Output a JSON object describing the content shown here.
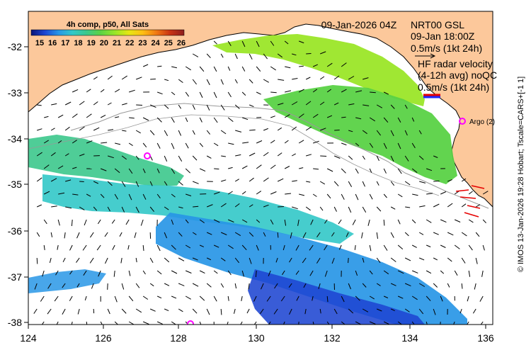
{
  "colorbar": {
    "title": "4h comp, p50, All Sats",
    "ticks": [
      "15",
      "16",
      "17",
      "18",
      "19",
      "20",
      "21",
      "22",
      "23",
      "24",
      "25",
      "26"
    ],
    "colors": [
      "#0a1478",
      "#1e46d2",
      "#2896e6",
      "#32c8c8",
      "#3cc88c",
      "#5ad246",
      "#9be628",
      "#e6e614",
      "#ffbe14",
      "#f07814",
      "#c83214",
      "#8c1e1e"
    ]
  },
  "header": {
    "date": "09-Jan-2026 04Z",
    "model": "NRT00 GSL",
    "model_time": "09-Jan 18:00Z",
    "model_scale": "0.5m/s (1kt 24h)",
    "radar_line1": "HF radar velocity",
    "radar_line2": "(4-12h avg) noQC",
    "radar_scale": "0.5m/s (1kt 24h)"
  },
  "markers": {
    "argo_label": "Argo (2)"
  },
  "axes": {
    "x_ticks": [
      "124",
      "126",
      "128",
      "130",
      "132",
      "134",
      "136"
    ],
    "y_ticks": [
      "-32",
      "-33",
      "-34",
      "-35",
      "-36",
      "-37",
      "-38"
    ]
  },
  "credit": "© IMOS 13-Jan-2026 19:28 Hobart; Tscale=CARS+[-1 1]",
  "style": {
    "land": "#fcc89b",
    "ocean": "#ffffff",
    "argo": "#ff00ff",
    "vector": "#000000",
    "radar_red": "#e60000",
    "radar_blue": "#1e28ff",
    "contour": "#999999"
  }
}
